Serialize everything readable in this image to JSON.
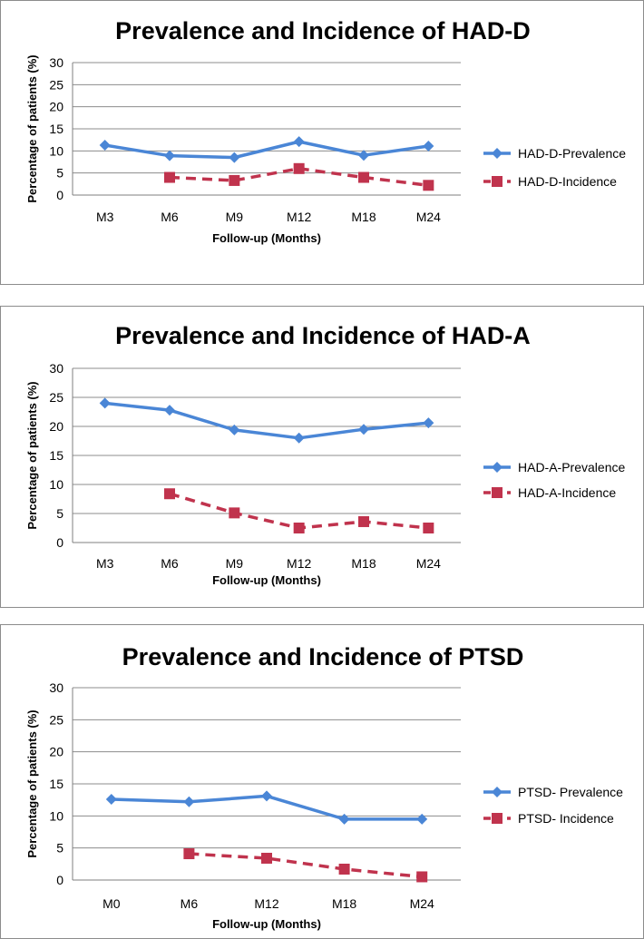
{
  "colors": {
    "prevalence": "#4a86d6",
    "incidence": "#c0334d",
    "grid": "#8c8c8c",
    "axis": "#7f7f7f"
  },
  "chart_data": [
    {
      "type": "line",
      "title": "Prevalence and Incidence of HAD-D",
      "xlabel": "Follow-up (Months)",
      "ylabel": "Percentage of patients (%)",
      "ylim": [
        0,
        30
      ],
      "yticks": [
        "0",
        "5",
        "10",
        "15",
        "20",
        "25",
        "30"
      ],
      "categories": [
        "M3",
        "M6",
        "M9",
        "M12",
        "M18",
        "M24"
      ],
      "legend_position": "right",
      "series": [
        {
          "name": "HAD-D-Prevalence",
          "style": "solid-diamond",
          "values": [
            11.3,
            8.9,
            8.5,
            12.1,
            9.0,
            11.1
          ]
        },
        {
          "name": "HAD-D-Incidence",
          "style": "dashed-square",
          "values": [
            null,
            4.0,
            3.3,
            6.0,
            4.0,
            2.2
          ]
        }
      ]
    },
    {
      "type": "line",
      "title": "Prevalence and Incidence of HAD-A",
      "xlabel": "Follow-up (Months)",
      "ylabel": "Percentage of patients (%)",
      "ylim": [
        0,
        30
      ],
      "yticks": [
        "0",
        "5",
        "10",
        "15",
        "20",
        "25",
        "30"
      ],
      "categories": [
        "M3",
        "M6",
        "M9",
        "M12",
        "M18",
        "M24"
      ],
      "legend_position": "right",
      "series": [
        {
          "name": "HAD-A-Prevalence",
          "style": "solid-diamond",
          "values": [
            24.0,
            22.8,
            19.4,
            18.0,
            19.5,
            20.6
          ]
        },
        {
          "name": "HAD-A-Incidence",
          "style": "dashed-square",
          "values": [
            null,
            8.4,
            5.1,
            2.5,
            3.6,
            2.5
          ]
        }
      ]
    },
    {
      "type": "line",
      "title": "Prevalence and Incidence of PTSD",
      "xlabel": "Follow-up (Months)",
      "ylabel": "Percentage of patients (%)",
      "ylim": [
        0,
        30
      ],
      "yticks": [
        "0",
        "5",
        "10",
        "15",
        "20",
        "25",
        "30"
      ],
      "categories": [
        "M0",
        "M6",
        "M12",
        "M18",
        "M24"
      ],
      "legend_position": "right",
      "series": [
        {
          "name": "PTSD- Prevalence",
          "style": "solid-diamond",
          "values": [
            12.6,
            12.2,
            13.1,
            9.5,
            9.5
          ]
        },
        {
          "name": "PTSD- Incidence",
          "style": "dashed-square",
          "values": [
            null,
            4.1,
            3.4,
            1.7,
            0.5
          ]
        }
      ]
    }
  ]
}
